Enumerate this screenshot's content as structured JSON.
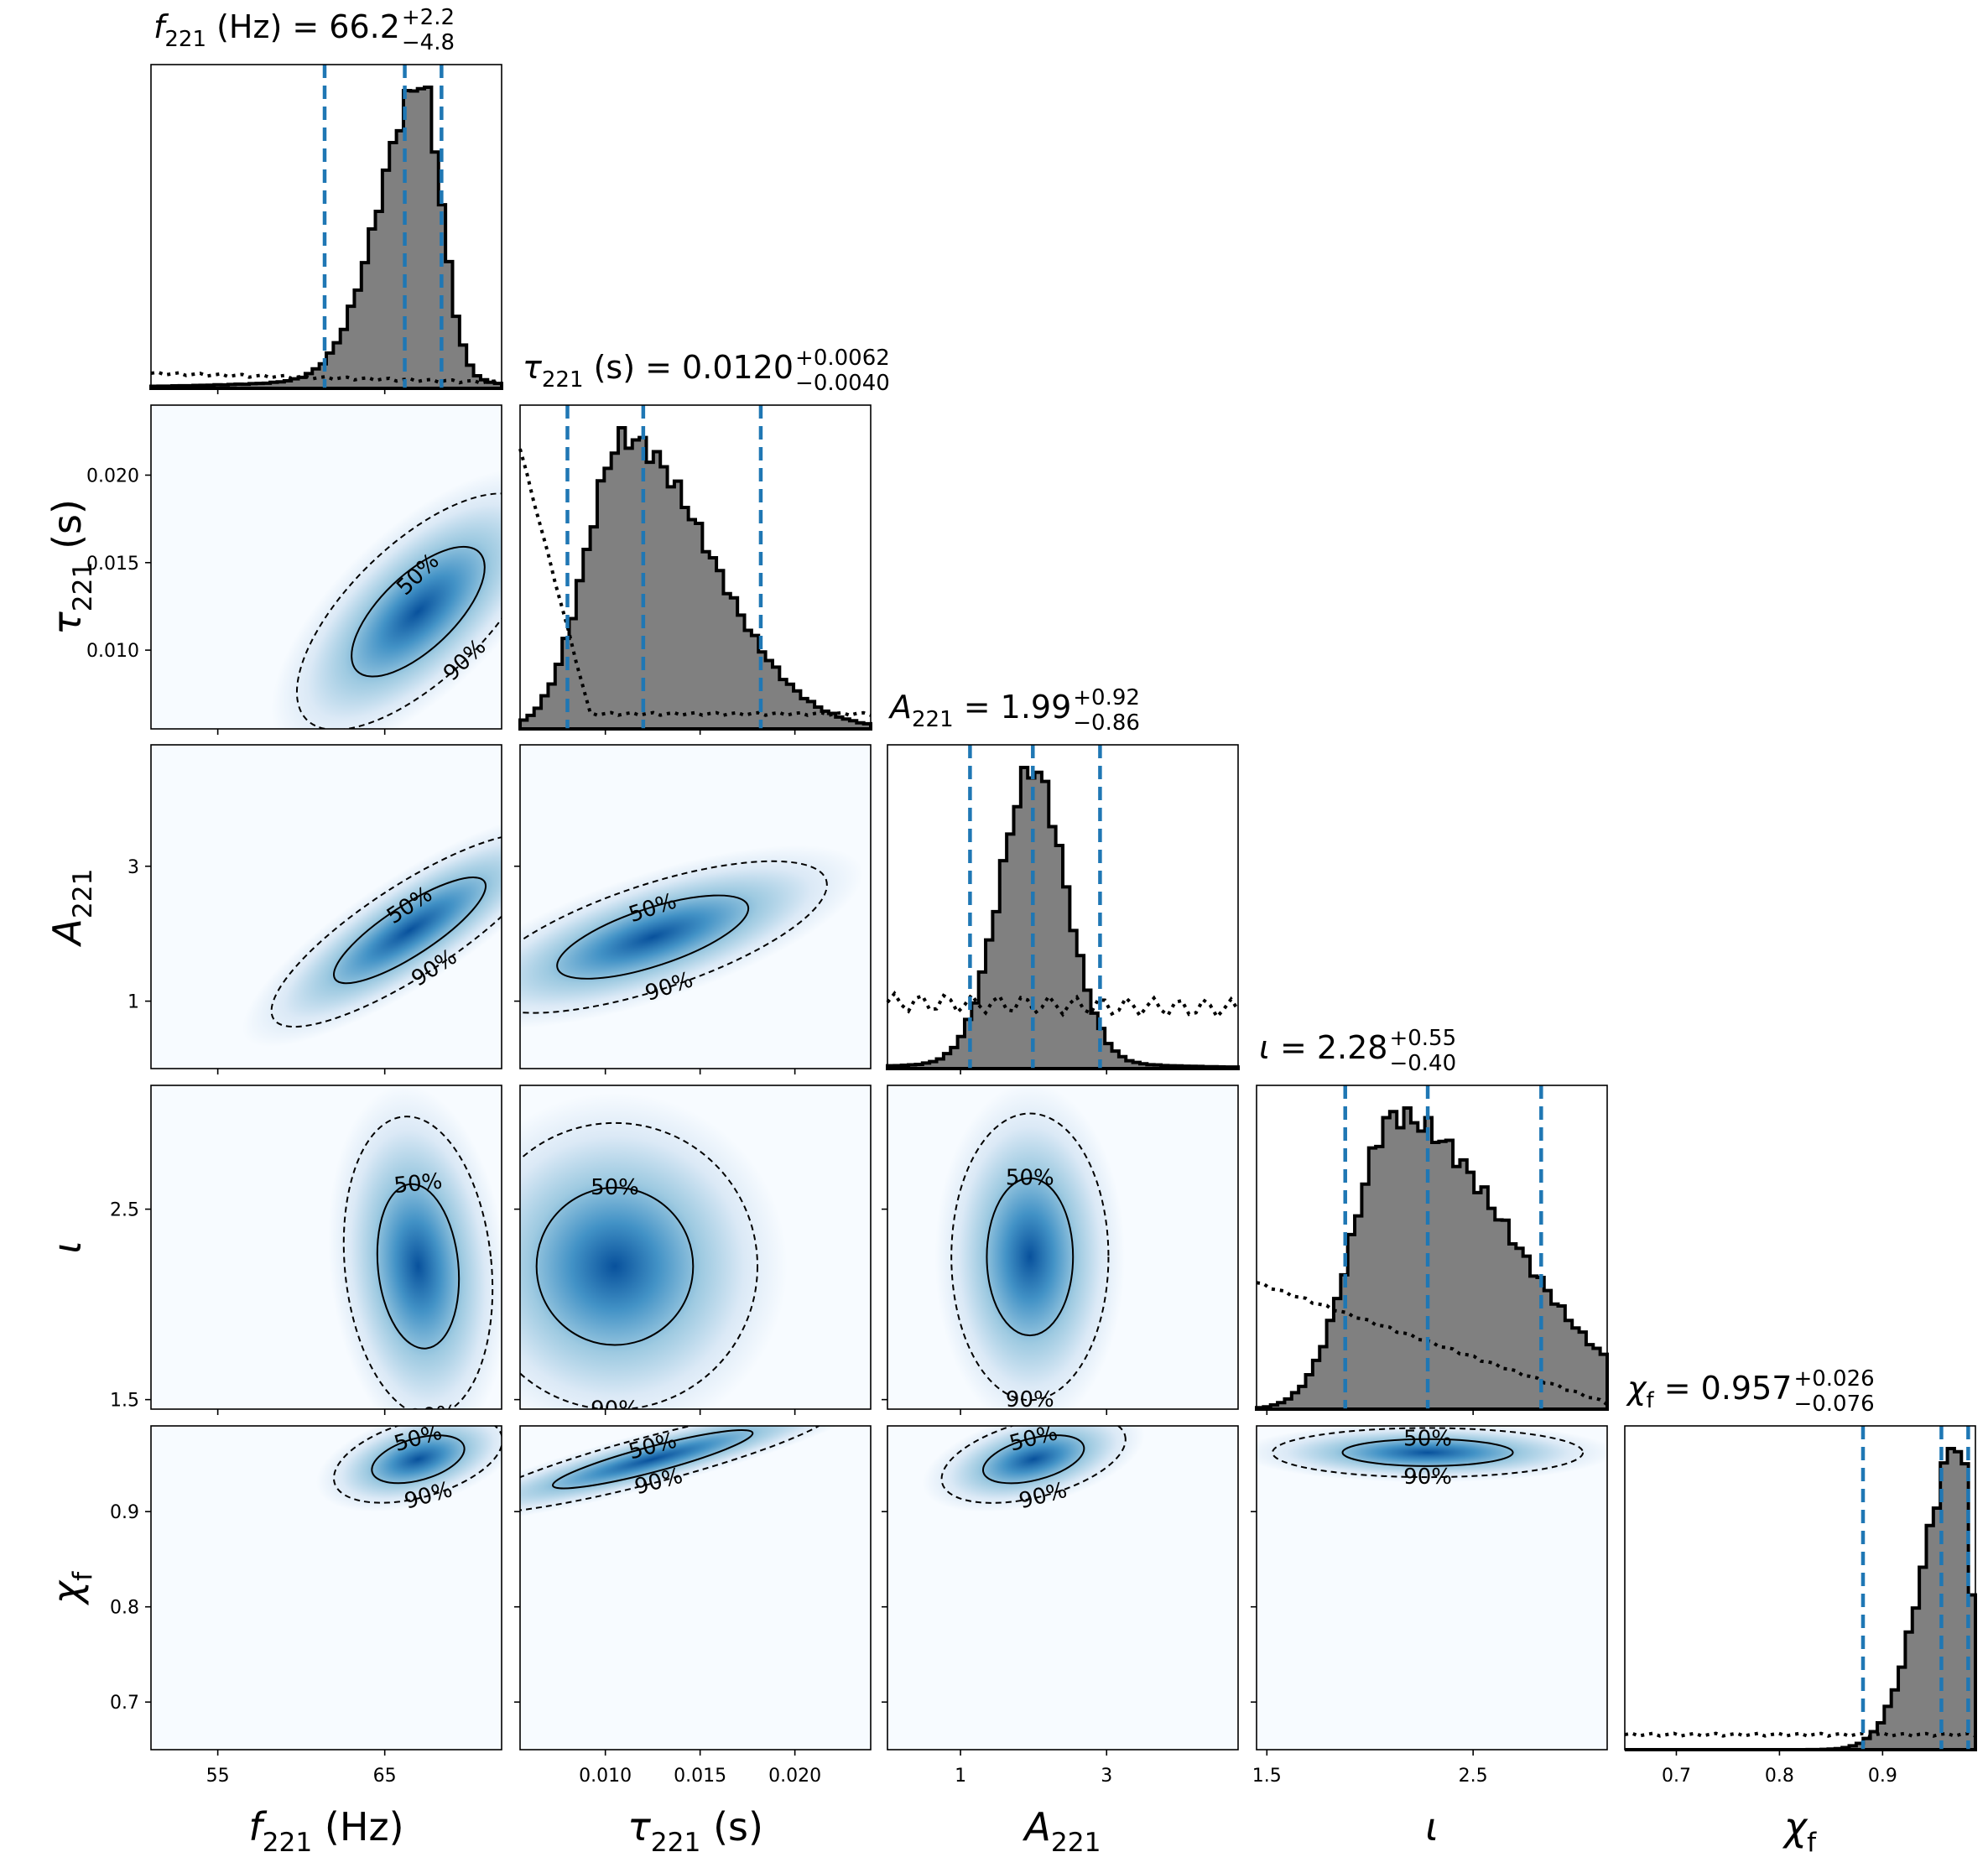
{
  "chart_data": {
    "type": "corner",
    "colors": {
      "hist_fill": "#808080",
      "hist_edge": "#000000",
      "quantile_line": "#1f77b4",
      "density_low": "#f7fbff",
      "density_high": "#08519c",
      "contour": "#000000",
      "prior": "#000000"
    },
    "params": [
      {
        "key": "f221",
        "label_main": "f",
        "label_sub": "221",
        "label_unit": " (Hz)",
        "title_main": "f",
        "title_sub": "221",
        "title_rest": " (Hz) = 66.2",
        "title_plus": "+2.2",
        "title_minus": "−4.8",
        "range": [
          51,
          72
        ],
        "ticks": [
          55,
          65
        ],
        "tick_labels": [
          "55",
          "65"
        ],
        "median": 66.2,
        "lower": 61.4,
        "upper": 68.4,
        "hist_center": 67.2,
        "hist_left_sigma": 2.5,
        "hist_right_sigma": 1.2,
        "hist_tail": 0.06,
        "prior_levels": [
          0.05,
          0.02
        ]
      },
      {
        "key": "tau221",
        "label_main": "τ",
        "label_sub": "221",
        "label_unit": " (s)",
        "title_main": "τ",
        "title_sub": "221",
        "title_rest": " (s) = 0.0120",
        "title_plus": "+0.0062",
        "title_minus": "−0.0040",
        "range": [
          0.0055,
          0.024
        ],
        "ticks": [
          0.01,
          0.015,
          0.02
        ],
        "tick_labels": [
          "0.010",
          "0.015",
          "0.020"
        ],
        "median": 0.012,
        "lower": 0.008,
        "upper": 0.0182,
        "hist_center": 0.011,
        "hist_left_sigma": 0.002,
        "hist_right_sigma": 0.0045,
        "hist_tail": 0.0,
        "prior_levels": [
          0.93,
          0.05
        ]
      },
      {
        "key": "A221",
        "label_main": "A",
        "label_sub": "221",
        "label_unit": "",
        "title_main": "A",
        "title_sub": "221",
        "title_rest": " = 1.99",
        "title_plus": "+0.92",
        "title_minus": "−0.86",
        "range": [
          0.0,
          4.8
        ],
        "ticks": [
          1,
          3
        ],
        "tick_labels": [
          "1",
          "3"
        ],
        "median": 1.99,
        "lower": 1.13,
        "upper": 2.91,
        "hist_center": 1.99,
        "hist_left_sigma": 0.45,
        "hist_right_sigma": 0.45,
        "hist_tail": 0.04,
        "prior_levels": [
          0.22,
          0.2
        ]
      },
      {
        "key": "iota",
        "label_main": "ι",
        "label_sub": "",
        "label_unit": "",
        "title_main": "ι",
        "title_sub": "",
        "title_rest": " = 2.28",
        "title_plus": "+0.55",
        "title_minus": "−0.40",
        "range": [
          1.45,
          3.15
        ],
        "ticks": [
          1.5,
          2.5
        ],
        "tick_labels": [
          "1.5",
          "2.5"
        ],
        "median": 2.28,
        "lower": 1.88,
        "upper": 2.83,
        "hist_center": 2.12,
        "hist_left_sigma": 0.2,
        "hist_right_sigma": 0.55,
        "hist_tail": 0.0,
        "prior_levels": [
          0.42,
          0.02
        ]
      },
      {
        "key": "chif",
        "label_main": "χ",
        "label_sub": "f",
        "label_unit": "",
        "title_main": "χ",
        "title_sub": "f",
        "title_rest": " = 0.957",
        "title_plus": "+0.026",
        "title_minus": "−0.076",
        "range": [
          0.65,
          0.99
        ],
        "ticks": [
          0.7,
          0.8,
          0.9
        ],
        "tick_labels": [
          "0.7",
          "0.8",
          "0.9"
        ],
        "median": 0.957,
        "lower": 0.881,
        "upper": 0.983,
        "hist_center": 0.975,
        "hist_left_sigma": 0.035,
        "hist_right_sigma": 0.01,
        "hist_tail": 0.0,
        "prior_levels": [
          0.05,
          0.05
        ]
      }
    ],
    "pairs": [
      {
        "row": 1,
        "col": 0,
        "mx": 67.0,
        "my": 0.0122,
        "sx": 2.5,
        "sy": 0.0028,
        "rho": 0.82,
        "contours": [
          "50%",
          "90%"
        ]
      },
      {
        "row": 2,
        "col": 0,
        "mx": 66.5,
        "my": 2.05,
        "sx": 3.0,
        "sy": 0.55,
        "rho": 0.88,
        "contours": [
          "50%",
          "90%"
        ]
      },
      {
        "row": 2,
        "col": 1,
        "mx": 0.0125,
        "my": 1.95,
        "sx": 0.0035,
        "sy": 0.45,
        "rho": 0.72,
        "contours": [
          "50%",
          "90%"
        ]
      },
      {
        "row": 3,
        "col": 0,
        "mx": 67.0,
        "my": 2.2,
        "sx": 2.0,
        "sy": 0.35,
        "rho": 0.05,
        "contours": [
          "50%",
          "90%"
        ]
      },
      {
        "row": 3,
        "col": 1,
        "mx": 0.0105,
        "my": 2.2,
        "sx": 0.0035,
        "sy": 0.35,
        "rho": 0.0,
        "contours": [
          "50%",
          "90%"
        ]
      },
      {
        "row": 3,
        "col": 2,
        "mx": 1.95,
        "my": 2.25,
        "sx": 0.5,
        "sy": 0.35,
        "rho": 0.0,
        "contours": [
          "50%",
          "90%"
        ]
      },
      {
        "row": 3,
        "col": 0,
        "skip": true
      },
      {
        "row": 4,
        "col": 0,
        "mx": 67.0,
        "my": 0.955,
        "sx": 2.0,
        "sy": 0.018,
        "rho": 0.55,
        "contours": [
          "50%",
          "90%"
        ]
      },
      {
        "row": 4,
        "col": 1,
        "mx": 0.0125,
        "my": 0.955,
        "sx": 0.0035,
        "sy": 0.02,
        "rho": 0.92,
        "contours": [
          "50%",
          "90%"
        ]
      },
      {
        "row": 4,
        "col": 2,
        "mx": 2.0,
        "my": 0.955,
        "sx": 0.5,
        "sy": 0.018,
        "rho": 0.55,
        "contours": [
          "50%",
          "90%"
        ]
      },
      {
        "row": 4,
        "col": 3,
        "mx": 2.28,
        "my": 0.962,
        "sx": 0.35,
        "sy": 0.012,
        "rho": 0.0,
        "contours": [
          "50%",
          "90%"
        ]
      }
    ]
  }
}
